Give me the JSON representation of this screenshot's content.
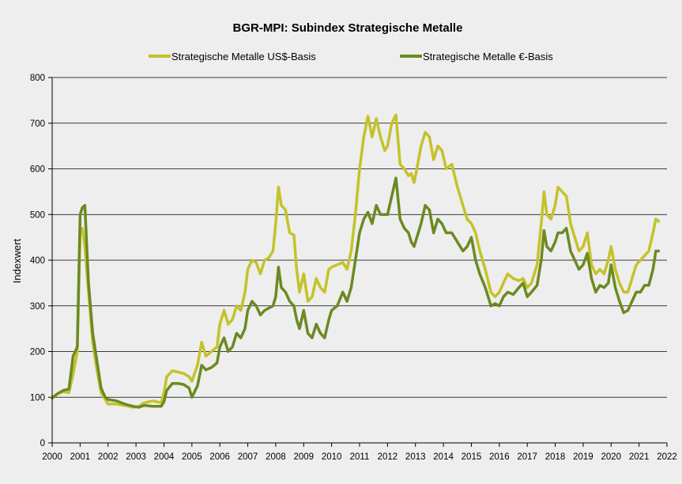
{
  "chart_data": {
    "type": "line",
    "title": "BGR-MPI:  Subindex Strategische Metalle",
    "xlabel": "",
    "ylabel": "Indexwert",
    "xlim": [
      2000,
      2022
    ],
    "ylim": [
      0,
      800
    ],
    "x_ticks": [
      "2000",
      "2001",
      "2002",
      "2003",
      "2004",
      "2005",
      "2006",
      "2007",
      "2008",
      "2009",
      "2010",
      "2011",
      "2012",
      "2013",
      "2014",
      "2015",
      "2016",
      "2017",
      "2018",
      "2019",
      "2020",
      "2021",
      "2022"
    ],
    "y_ticks": [
      "0",
      "100",
      "200",
      "300",
      "400",
      "500",
      "600",
      "700",
      "800"
    ],
    "grid": "horizontal",
    "legend_position": "top",
    "series": [
      {
        "name": "Strategische Metalle US$-Basis",
        "color": "#c5c22a",
        "points": [
          [
            2000.0,
            100
          ],
          [
            2000.2,
            108
          ],
          [
            2000.4,
            112
          ],
          [
            2000.6,
            110
          ],
          [
            2000.75,
            150
          ],
          [
            2000.9,
            200
          ],
          [
            2001.0,
            460
          ],
          [
            2001.08,
            470
          ],
          [
            2001.17,
            430
          ],
          [
            2001.3,
            330
          ],
          [
            2001.45,
            220
          ],
          [
            2001.6,
            160
          ],
          [
            2001.75,
            110
          ],
          [
            2001.9,
            95
          ],
          [
            2002.0,
            85
          ],
          [
            2002.3,
            85
          ],
          [
            2002.6,
            82
          ],
          [
            2002.9,
            78
          ],
          [
            2003.1,
            80
          ],
          [
            2003.3,
            88
          ],
          [
            2003.6,
            92
          ],
          [
            2003.9,
            88
          ],
          [
            2004.0,
            110
          ],
          [
            2004.1,
            145
          ],
          [
            2004.3,
            158
          ],
          [
            2004.5,
            155
          ],
          [
            2004.7,
            152
          ],
          [
            2004.9,
            145
          ],
          [
            2005.0,
            135
          ],
          [
            2005.2,
            170
          ],
          [
            2005.35,
            220
          ],
          [
            2005.5,
            190
          ],
          [
            2005.7,
            200
          ],
          [
            2005.9,
            210
          ],
          [
            2006.0,
            260
          ],
          [
            2006.15,
            290
          ],
          [
            2006.3,
            260
          ],
          [
            2006.45,
            270
          ],
          [
            2006.6,
            300
          ],
          [
            2006.75,
            290
          ],
          [
            2006.9,
            330
          ],
          [
            2007.0,
            380
          ],
          [
            2007.15,
            400
          ],
          [
            2007.3,
            395
          ],
          [
            2007.45,
            370
          ],
          [
            2007.6,
            400
          ],
          [
            2007.75,
            405
          ],
          [
            2007.9,
            420
          ],
          [
            2008.0,
            480
          ],
          [
            2008.1,
            560
          ],
          [
            2008.2,
            520
          ],
          [
            2008.35,
            510
          ],
          [
            2008.5,
            460
          ],
          [
            2008.65,
            455
          ],
          [
            2008.75,
            380
          ],
          [
            2008.85,
            330
          ],
          [
            2009.0,
            370
          ],
          [
            2009.15,
            310
          ],
          [
            2009.3,
            320
          ],
          [
            2009.45,
            360
          ],
          [
            2009.6,
            340
          ],
          [
            2009.75,
            330
          ],
          [
            2009.9,
            380
          ],
          [
            2010.0,
            385
          ],
          [
            2010.2,
            390
          ],
          [
            2010.4,
            395
          ],
          [
            2010.55,
            380
          ],
          [
            2010.7,
            420
          ],
          [
            2010.85,
            500
          ],
          [
            2011.0,
            600
          ],
          [
            2011.15,
            670
          ],
          [
            2011.3,
            715
          ],
          [
            2011.45,
            670
          ],
          [
            2011.6,
            710
          ],
          [
            2011.75,
            670
          ],
          [
            2011.9,
            640
          ],
          [
            2012.0,
            650
          ],
          [
            2012.15,
            700
          ],
          [
            2012.3,
            718
          ],
          [
            2012.45,
            610
          ],
          [
            2012.6,
            600
          ],
          [
            2012.75,
            585
          ],
          [
            2012.85,
            590
          ],
          [
            2012.95,
            570
          ],
          [
            2013.05,
            600
          ],
          [
            2013.2,
            650
          ],
          [
            2013.35,
            680
          ],
          [
            2013.5,
            670
          ],
          [
            2013.65,
            620
          ],
          [
            2013.8,
            650
          ],
          [
            2013.95,
            640
          ],
          [
            2014.1,
            600
          ],
          [
            2014.3,
            610
          ],
          [
            2014.5,
            560
          ],
          [
            2014.7,
            520
          ],
          [
            2014.85,
            490
          ],
          [
            2015.0,
            480
          ],
          [
            2015.15,
            460
          ],
          [
            2015.3,
            420
          ],
          [
            2015.5,
            380
          ],
          [
            2015.7,
            330
          ],
          [
            2015.85,
            320
          ],
          [
            2016.0,
            330
          ],
          [
            2016.15,
            350
          ],
          [
            2016.3,
            370
          ],
          [
            2016.5,
            360
          ],
          [
            2016.7,
            355
          ],
          [
            2016.85,
            360
          ],
          [
            2017.0,
            340
          ],
          [
            2017.15,
            350
          ],
          [
            2017.35,
            390
          ],
          [
            2017.5,
            480
          ],
          [
            2017.6,
            550
          ],
          [
            2017.7,
            500
          ],
          [
            2017.85,
            490
          ],
          [
            2018.0,
            520
          ],
          [
            2018.1,
            560
          ],
          [
            2018.25,
            550
          ],
          [
            2018.4,
            540
          ],
          [
            2018.55,
            480
          ],
          [
            2018.7,
            450
          ],
          [
            2018.85,
            420
          ],
          [
            2019.0,
            430
          ],
          [
            2019.15,
            460
          ],
          [
            2019.3,
            390
          ],
          [
            2019.45,
            370
          ],
          [
            2019.6,
            380
          ],
          [
            2019.75,
            370
          ],
          [
            2019.9,
            400
          ],
          [
            2020.0,
            430
          ],
          [
            2020.15,
            380
          ],
          [
            2020.3,
            350
          ],
          [
            2020.45,
            330
          ],
          [
            2020.6,
            330
          ],
          [
            2020.75,
            360
          ],
          [
            2020.9,
            390
          ],
          [
            2021.05,
            400
          ],
          [
            2021.2,
            410
          ],
          [
            2021.35,
            420
          ],
          [
            2021.5,
            460
          ],
          [
            2021.6,
            490
          ],
          [
            2021.7,
            485
          ]
        ]
      },
      {
        "name": "Strategische Metalle €-Basis",
        "color": "#6b8a22",
        "points": [
          [
            2000.0,
            98
          ],
          [
            2000.2,
            108
          ],
          [
            2000.4,
            115
          ],
          [
            2000.6,
            118
          ],
          [
            2000.75,
            190
          ],
          [
            2000.9,
            210
          ],
          [
            2001.0,
            500
          ],
          [
            2001.08,
            515
          ],
          [
            2001.17,
            520
          ],
          [
            2001.3,
            350
          ],
          [
            2001.45,
            240
          ],
          [
            2001.6,
            180
          ],
          [
            2001.75,
            120
          ],
          [
            2001.9,
            100
          ],
          [
            2002.0,
            95
          ],
          [
            2002.3,
            92
          ],
          [
            2002.6,
            85
          ],
          [
            2002.9,
            80
          ],
          [
            2003.1,
            78
          ],
          [
            2003.3,
            82
          ],
          [
            2003.6,
            80
          ],
          [
            2003.9,
            80
          ],
          [
            2004.0,
            90
          ],
          [
            2004.1,
            115
          ],
          [
            2004.3,
            130
          ],
          [
            2004.5,
            130
          ],
          [
            2004.7,
            128
          ],
          [
            2004.9,
            120
          ],
          [
            2005.0,
            100
          ],
          [
            2005.2,
            125
          ],
          [
            2005.35,
            170
          ],
          [
            2005.5,
            160
          ],
          [
            2005.7,
            165
          ],
          [
            2005.9,
            175
          ],
          [
            2006.0,
            210
          ],
          [
            2006.15,
            230
          ],
          [
            2006.3,
            200
          ],
          [
            2006.45,
            210
          ],
          [
            2006.6,
            240
          ],
          [
            2006.75,
            230
          ],
          [
            2006.9,
            250
          ],
          [
            2007.0,
            290
          ],
          [
            2007.15,
            310
          ],
          [
            2007.3,
            300
          ],
          [
            2007.45,
            280
          ],
          [
            2007.6,
            290
          ],
          [
            2007.75,
            295
          ],
          [
            2007.9,
            300
          ],
          [
            2008.0,
            320
          ],
          [
            2008.1,
            385
          ],
          [
            2008.2,
            340
          ],
          [
            2008.35,
            330
          ],
          [
            2008.5,
            310
          ],
          [
            2008.65,
            300
          ],
          [
            2008.75,
            270
          ],
          [
            2008.85,
            250
          ],
          [
            2009.0,
            290
          ],
          [
            2009.15,
            240
          ],
          [
            2009.3,
            230
          ],
          [
            2009.45,
            260
          ],
          [
            2009.6,
            240
          ],
          [
            2009.75,
            230
          ],
          [
            2009.9,
            270
          ],
          [
            2010.0,
            290
          ],
          [
            2010.2,
            300
          ],
          [
            2010.4,
            330
          ],
          [
            2010.55,
            310
          ],
          [
            2010.7,
            340
          ],
          [
            2010.85,
            400
          ],
          [
            2011.0,
            460
          ],
          [
            2011.15,
            490
          ],
          [
            2011.3,
            505
          ],
          [
            2011.45,
            480
          ],
          [
            2011.6,
            520
          ],
          [
            2011.75,
            500
          ],
          [
            2011.9,
            500
          ],
          [
            2012.0,
            500
          ],
          [
            2012.15,
            540
          ],
          [
            2012.3,
            580
          ],
          [
            2012.45,
            490
          ],
          [
            2012.6,
            470
          ],
          [
            2012.75,
            460
          ],
          [
            2012.85,
            440
          ],
          [
            2012.95,
            430
          ],
          [
            2013.05,
            450
          ],
          [
            2013.2,
            480
          ],
          [
            2013.35,
            520
          ],
          [
            2013.5,
            510
          ],
          [
            2013.65,
            460
          ],
          [
            2013.8,
            490
          ],
          [
            2013.95,
            480
          ],
          [
            2014.1,
            460
          ],
          [
            2014.3,
            460
          ],
          [
            2014.5,
            440
          ],
          [
            2014.7,
            420
          ],
          [
            2014.85,
            430
          ],
          [
            2015.0,
            450
          ],
          [
            2015.15,
            400
          ],
          [
            2015.3,
            370
          ],
          [
            2015.5,
            340
          ],
          [
            2015.7,
            300
          ],
          [
            2015.85,
            305
          ],
          [
            2016.0,
            300
          ],
          [
            2016.15,
            320
          ],
          [
            2016.3,
            330
          ],
          [
            2016.5,
            325
          ],
          [
            2016.7,
            340
          ],
          [
            2016.85,
            350
          ],
          [
            2017.0,
            320
          ],
          [
            2017.15,
            330
          ],
          [
            2017.35,
            345
          ],
          [
            2017.5,
            400
          ],
          [
            2017.6,
            465
          ],
          [
            2017.7,
            430
          ],
          [
            2017.85,
            420
          ],
          [
            2018.0,
            440
          ],
          [
            2018.1,
            460
          ],
          [
            2018.25,
            460
          ],
          [
            2018.4,
            470
          ],
          [
            2018.55,
            420
          ],
          [
            2018.7,
            400
          ],
          [
            2018.85,
            380
          ],
          [
            2019.0,
            390
          ],
          [
            2019.15,
            415
          ],
          [
            2019.3,
            360
          ],
          [
            2019.45,
            330
          ],
          [
            2019.6,
            345
          ],
          [
            2019.75,
            340
          ],
          [
            2019.9,
            350
          ],
          [
            2020.0,
            390
          ],
          [
            2020.15,
            340
          ],
          [
            2020.3,
            310
          ],
          [
            2020.45,
            285
          ],
          [
            2020.6,
            290
          ],
          [
            2020.75,
            310
          ],
          [
            2020.9,
            330
          ],
          [
            2021.05,
            330
          ],
          [
            2021.2,
            345
          ],
          [
            2021.35,
            345
          ],
          [
            2021.5,
            380
          ],
          [
            2021.6,
            420
          ],
          [
            2021.7,
            420
          ]
        ]
      }
    ]
  }
}
